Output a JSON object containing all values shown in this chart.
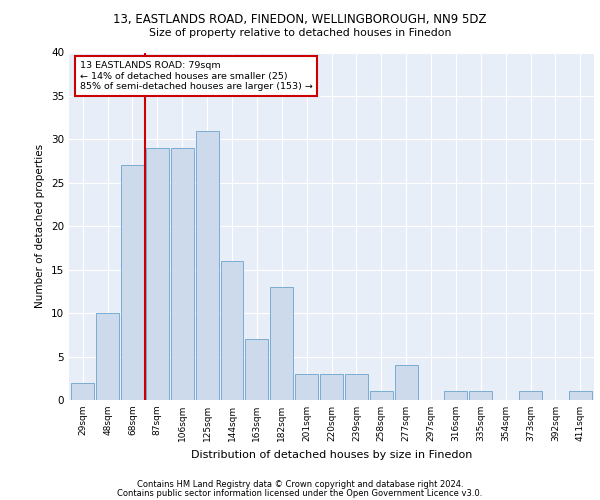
{
  "title1": "13, EASTLANDS ROAD, FINEDON, WELLINGBOROUGH, NN9 5DZ",
  "title2": "Size of property relative to detached houses in Finedon",
  "xlabel": "Distribution of detached houses by size in Finedon",
  "ylabel": "Number of detached properties",
  "categories": [
    "29sqm",
    "48sqm",
    "68sqm",
    "87sqm",
    "106sqm",
    "125sqm",
    "144sqm",
    "163sqm",
    "182sqm",
    "201sqm",
    "220sqm",
    "239sqm",
    "258sqm",
    "277sqm",
    "297sqm",
    "316sqm",
    "335sqm",
    "354sqm",
    "373sqm",
    "392sqm",
    "411sqm"
  ],
  "values": [
    2,
    10,
    27,
    29,
    29,
    31,
    16,
    7,
    13,
    3,
    3,
    3,
    1,
    4,
    0,
    1,
    1,
    0,
    1,
    0,
    1
  ],
  "bar_color": "#cddaec",
  "bar_edge_color": "#7aadd4",
  "vline_color": "#cc0000",
  "vline_x": 1.5,
  "annotation_line1": "13 EASTLANDS ROAD: 79sqm",
  "annotation_line2": "← 14% of detached houses are smaller (25)",
  "annotation_line3": "85% of semi-detached houses are larger (153) →",
  "annotation_box_color": "#ffffff",
  "annotation_box_edge": "#cc0000",
  "ylim": [
    0,
    40
  ],
  "yticks": [
    0,
    5,
    10,
    15,
    20,
    25,
    30,
    35,
    40
  ],
  "footer1": "Contains HM Land Registry data © Crown copyright and database right 2024.",
  "footer2": "Contains public sector information licensed under the Open Government Licence v3.0.",
  "plot_background": "#e8eef7",
  "fig_background": "#ffffff"
}
